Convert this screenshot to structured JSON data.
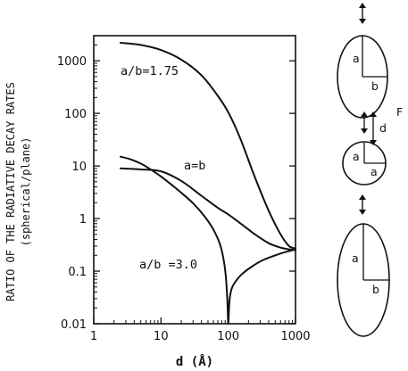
{
  "chart_data": {
    "type": "line",
    "xscale": "log",
    "yscale": "log",
    "xlim": [
      1,
      1000
    ],
    "ylim": [
      0.01,
      3000
    ],
    "xlabel": "d (Å)",
    "ylabel_line1": "RATIO OF THE RADIATIVE DECAY RATES",
    "ylabel_line2": "(spherical/plane)",
    "x_ticks": [
      1,
      10,
      100,
      1000
    ],
    "x_tick_labels": [
      "1",
      "10",
      "100",
      "1000"
    ],
    "y_ticks": [
      0.01,
      0.1,
      1,
      10,
      100,
      1000
    ],
    "y_tick_labels": [
      "0.01",
      "0.1",
      "1",
      "10",
      "100",
      "1000"
    ],
    "grid": false,
    "series": [
      {
        "name": "a/b=1.75",
        "x": [
          2.5,
          5,
          10,
          20,
          40,
          70,
          100,
          150,
          250,
          400,
          600,
          800,
          1000
        ],
        "y": [
          2200,
          2000,
          1600,
          1050,
          530,
          215,
          105,
          34,
          6,
          1.4,
          0.5,
          0.3,
          0.27
        ]
      },
      {
        "name": "a=b",
        "x": [
          2.5,
          5,
          10,
          20,
          40,
          70,
          100,
          150,
          250,
          400,
          600,
          800,
          1000
        ],
        "y": [
          9,
          8.6,
          7.9,
          5.2,
          2.7,
          1.6,
          1.2,
          0.82,
          0.5,
          0.34,
          0.28,
          0.26,
          0.25
        ]
      },
      {
        "name": "a/b=3.0",
        "x": [
          2.5,
          3.5,
          5,
          7,
          10,
          15,
          20,
          30,
          45,
          60,
          75,
          85,
          92,
          96,
          98,
          100,
          102,
          104,
          108,
          115,
          130,
          160,
          220,
          320,
          500,
          700,
          1000
        ],
        "y": [
          15,
          13.4,
          11.1,
          8.6,
          6.3,
          4.2,
          3.1,
          1.95,
          1.08,
          0.62,
          0.33,
          0.17,
          0.08,
          0.035,
          0.02,
          0.01,
          0.016,
          0.026,
          0.038,
          0.05,
          0.065,
          0.088,
          0.12,
          0.16,
          0.2,
          0.23,
          0.26
        ]
      }
    ],
    "annotations": [
      "a/b=1.75",
      "a=b",
      "a/b =3.0"
    ]
  },
  "diagram": {
    "ellipses": [
      {
        "a_label": "a",
        "b_label": "b",
        "b_fraction": 0.6
      },
      {
        "a_label": "a",
        "b_label": "a",
        "b_fraction": 0.4
      },
      {
        "a_label": "a",
        "b_label": "b",
        "b_fraction": 0.35
      }
    ],
    "d_label": "d",
    "f_label": "F"
  }
}
